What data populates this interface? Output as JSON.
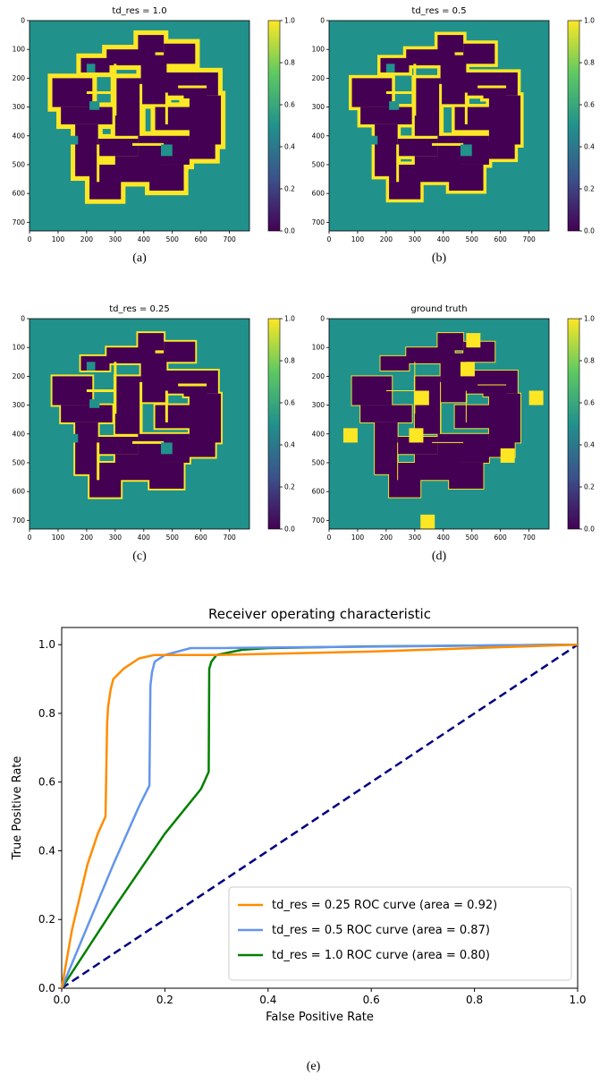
{
  "colors": {
    "background": "#21918c",
    "path": "#440154",
    "wall": "#fde725",
    "roc_series_0": "#ff8c00",
    "roc_series_1": "#6495ed",
    "roc_series_2": "#008000",
    "roc_diagonal": "#000080"
  },
  "colorbar": {
    "ticks": [
      "0.0",
      "0.2",
      "0.4",
      "0.6",
      "0.8",
      "1.0"
    ],
    "stops": [
      "#440154",
      "#3b528b",
      "#21918c",
      "#5ec962",
      "#fde725"
    ]
  },
  "chart_data": [
    {
      "type": "heatmap",
      "title": "td_res = 1.0",
      "caption": "(a)",
      "xticks": [
        "0",
        "100",
        "200",
        "300",
        "400",
        "500",
        "600",
        "700"
      ],
      "yticks": [
        "0",
        "100",
        "200",
        "300",
        "400",
        "500",
        "600",
        "700"
      ],
      "xlim": [
        0,
        770
      ],
      "ylim": [
        730,
        0
      ],
      "clim": [
        0,
        1
      ]
    },
    {
      "type": "heatmap",
      "title": "td_res = 0.5",
      "caption": "(b)",
      "xticks": [
        "0",
        "100",
        "200",
        "300",
        "400",
        "500",
        "600",
        "700"
      ],
      "yticks": [
        "0",
        "100",
        "200",
        "300",
        "400",
        "500",
        "600",
        "700"
      ],
      "xlim": [
        0,
        770
      ],
      "ylim": [
        730,
        0
      ],
      "clim": [
        0,
        1
      ]
    },
    {
      "type": "heatmap",
      "title": "td_res = 0.25",
      "caption": "(c)",
      "xticks": [
        "0",
        "100",
        "200",
        "300",
        "400",
        "500",
        "600",
        "700"
      ],
      "yticks": [
        "0",
        "100",
        "200",
        "300",
        "400",
        "500",
        "600",
        "700"
      ],
      "xlim": [
        0,
        770
      ],
      "ylim": [
        730,
        0
      ],
      "clim": [
        0,
        1
      ]
    },
    {
      "type": "heatmap",
      "title": "ground truth",
      "caption": "(d)",
      "xticks": [
        "0",
        "100",
        "200",
        "300",
        "400",
        "500",
        "600",
        "700"
      ],
      "yticks": [
        "0",
        "100",
        "200",
        "300",
        "400",
        "500",
        "600",
        "700"
      ],
      "xlim": [
        0,
        770
      ],
      "ylim": [
        730,
        0
      ],
      "clim": [
        0,
        1
      ]
    },
    {
      "type": "line",
      "title": "Receiver operating characteristic",
      "caption": "(e)",
      "xlabel": "False Positive Rate",
      "ylabel": "True Positive Rate",
      "xlim": [
        0,
        1
      ],
      "ylim": [
        0,
        1.05
      ],
      "xticks": [
        "0.0",
        "0.2",
        "0.4",
        "0.6",
        "0.8",
        "1.0"
      ],
      "yticks": [
        "0.0",
        "0.2",
        "0.4",
        "0.6",
        "0.8",
        "1.0"
      ],
      "legend_position": "bottom-right",
      "series": [
        {
          "name": "td_res = 0.25  ROC curve (area = 0.92)",
          "x": [
            0,
            0.02,
            0.05,
            0.07,
            0.085,
            0.088,
            0.09,
            0.095,
            0.1,
            0.12,
            0.15,
            0.18,
            0.3,
            0.6,
            1.0
          ],
          "y": [
            0,
            0.17,
            0.36,
            0.45,
            0.5,
            0.77,
            0.82,
            0.87,
            0.9,
            0.93,
            0.96,
            0.97,
            0.97,
            0.98,
            1.0
          ]
        },
        {
          "name": "td_res = 0.5 ROC curve (area = 0.87)",
          "x": [
            0,
            0.05,
            0.1,
            0.15,
            0.17,
            0.172,
            0.175,
            0.18,
            0.19,
            0.2,
            0.25,
            0.3,
            1.0
          ],
          "y": [
            0,
            0.18,
            0.36,
            0.53,
            0.59,
            0.88,
            0.92,
            0.95,
            0.96,
            0.97,
            0.99,
            0.99,
            1.0
          ]
        },
        {
          "name": "td_res = 1.0 ROC curve (area = 0.80)",
          "x": [
            0,
            0.1,
            0.2,
            0.27,
            0.285,
            0.286,
            0.29,
            0.3,
            0.35,
            0.4,
            0.6,
            1.0
          ],
          "y": [
            0,
            0.23,
            0.45,
            0.58,
            0.63,
            0.93,
            0.95,
            0.97,
            0.985,
            0.99,
            0.995,
            1.0
          ]
        }
      ],
      "diagonal": {
        "x": [
          0,
          1
        ],
        "y": [
          0,
          1
        ]
      }
    }
  ]
}
